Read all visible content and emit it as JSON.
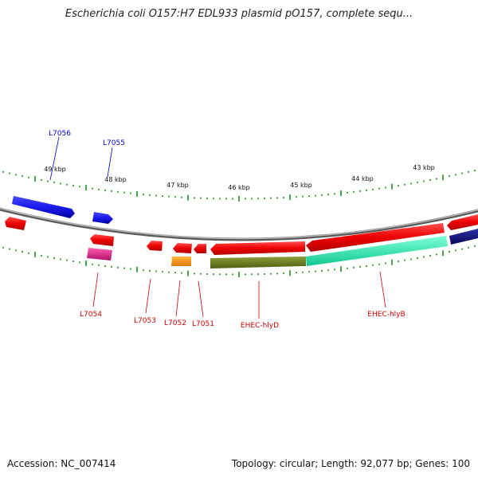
{
  "title": "Escherichia coli O157:H7 EDL933 plasmid pO157, complete sequ...",
  "footer": {
    "accession": "Accession: NC_007414",
    "summary": "Topology: circular; Length: 92,077 bp; Genes: 100"
  },
  "kbp_ticks": [
    "49 kbp",
    "48 kbp",
    "47 kbp",
    "46 kbp",
    "45 kbp",
    "44 kbp",
    "43 kbp"
  ],
  "gene_labels": {
    "L7056": "L7056",
    "L7055": "L7055",
    "L7054": "L7054",
    "L7053": "L7053",
    "L7052": "L7052",
    "L7051": "L7051",
    "hlyD": "EHEC-hlyD",
    "hlyB": "EHEC-hlyB"
  },
  "colors": {
    "forward_gene": "#ee0000",
    "blue_gene": "#1a1aee",
    "navy_gene": "#0a0a80",
    "pink_gene": "#e0208a",
    "orange_gene": "#ff9900",
    "olive_gene": "#6b7f1e",
    "mint_gene": "#22f0b0",
    "tick": "#118811",
    "backbone": "#8a8a8a"
  }
}
